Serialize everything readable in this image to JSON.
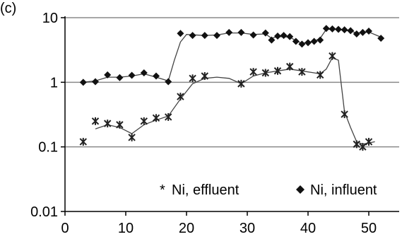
{
  "panel_label": "(c)",
  "chart_data": {
    "type": "scatter",
    "title": "",
    "xlabel": "",
    "ylabel": "",
    "xlim": [
      0,
      55
    ],
    "ylim": [
      0.01,
      10
    ],
    "y_scale": "log",
    "grid": "horizontal major gridlines",
    "legend_position": "bottom-right",
    "x_ticks": [
      0,
      10,
      20,
      30,
      40,
      50
    ],
    "x_tick_labels": [
      "0",
      "10",
      "20",
      "30",
      "40",
      "50"
    ],
    "y_ticks": [
      0.01,
      0.1,
      1,
      10
    ],
    "y_tick_labels": [
      "0.01",
      "0.1",
      "1",
      "10"
    ],
    "series": [
      {
        "name": "Ni, effluent",
        "marker": "asterisk",
        "color": "#222222",
        "points": [
          [
            3,
            0.12
          ],
          [
            5,
            0.25
          ],
          [
            7,
            0.23
          ],
          [
            9,
            0.22
          ],
          [
            11,
            0.14
          ],
          [
            13,
            0.25
          ],
          [
            15,
            0.28
          ],
          [
            17,
            0.29
          ],
          [
            19,
            0.6
          ],
          [
            21,
            1.15
          ],
          [
            23,
            1.25
          ],
          [
            29,
            0.95
          ],
          [
            31,
            1.45
          ],
          [
            33,
            1.4
          ],
          [
            35,
            1.5
          ],
          [
            37,
            1.75
          ],
          [
            39,
            1.45
          ],
          [
            42,
            1.3
          ],
          [
            44,
            2.55
          ],
          [
            46,
            0.32
          ],
          [
            48,
            0.11
          ],
          [
            49,
            0.1
          ],
          [
            50,
            0.12
          ]
        ],
        "trend": [
          [
            5,
            0.19
          ],
          [
            7,
            0.22
          ],
          [
            9,
            0.2
          ],
          [
            11,
            0.16
          ],
          [
            13,
            0.22
          ],
          [
            15,
            0.26
          ],
          [
            17,
            0.3
          ],
          [
            19,
            0.55
          ],
          [
            21,
            0.95
          ],
          [
            23,
            1.15
          ],
          [
            25,
            1.2
          ],
          [
            27,
            1.15
          ],
          [
            29,
            0.95
          ],
          [
            31,
            1.25
          ],
          [
            33,
            1.4
          ],
          [
            35,
            1.5
          ],
          [
            37,
            1.6
          ],
          [
            39,
            1.5
          ],
          [
            41,
            1.4
          ],
          [
            42,
            1.35
          ],
          [
            43,
            1.6
          ],
          [
            44,
            2.4
          ],
          [
            45,
            2.2
          ],
          [
            46,
            0.35
          ],
          [
            47,
            0.2
          ],
          [
            48,
            0.12
          ],
          [
            49,
            0.11
          ],
          [
            51,
            0.12
          ]
        ]
      },
      {
        "name": "Ni, influent",
        "marker": "diamond",
        "color": "#111111",
        "points": [
          [
            3,
            1.0
          ],
          [
            5,
            1.02
          ],
          [
            7,
            1.3
          ],
          [
            9,
            1.18
          ],
          [
            11,
            1.28
          ],
          [
            13,
            1.4
          ],
          [
            15,
            1.25
          ],
          [
            17,
            1.02
          ],
          [
            19,
            5.7
          ],
          [
            21,
            5.3
          ],
          [
            23,
            5.3
          ],
          [
            25,
            5.3
          ],
          [
            27,
            5.9
          ],
          [
            29,
            5.9
          ],
          [
            31,
            5.4
          ],
          [
            33,
            5.8
          ],
          [
            34,
            4.5
          ],
          [
            35,
            5.2
          ],
          [
            36,
            5.3
          ],
          [
            37,
            5.1
          ],
          [
            38,
            4.3
          ],
          [
            39,
            3.9
          ],
          [
            40,
            4.1
          ],
          [
            41,
            4.3
          ],
          [
            42,
            4.5
          ],
          [
            43,
            6.8
          ],
          [
            44,
            6.7
          ],
          [
            45,
            6.6
          ],
          [
            46,
            6.5
          ],
          [
            47,
            6.3
          ],
          [
            48,
            5.6
          ],
          [
            49,
            5.9
          ],
          [
            50,
            6.2
          ],
          [
            52,
            4.8
          ]
        ],
        "trend": [
          [
            3,
            1.0
          ],
          [
            5,
            1.05
          ],
          [
            7,
            1.2
          ],
          [
            9,
            1.2
          ],
          [
            11,
            1.25
          ],
          [
            13,
            1.35
          ],
          [
            15,
            1.2
          ],
          [
            17,
            1.05
          ],
          [
            18,
            2.2
          ],
          [
            19,
            4.2
          ],
          [
            20,
            5.5
          ],
          [
            23,
            5.3
          ],
          [
            25,
            5.4
          ],
          [
            27,
            5.8
          ],
          [
            29,
            5.8
          ],
          [
            31,
            5.5
          ],
          [
            33,
            5.6
          ],
          [
            34,
            4.8
          ],
          [
            35,
            5.1
          ],
          [
            37,
            5.0
          ],
          [
            38,
            4.4
          ],
          [
            39,
            4.0
          ],
          [
            41,
            4.3
          ],
          [
            42,
            4.8
          ],
          [
            43,
            6.6
          ],
          [
            45,
            6.6
          ],
          [
            47,
            6.2
          ],
          [
            48,
            5.8
          ],
          [
            50,
            6.0
          ],
          [
            52,
            5.0
          ]
        ]
      }
    ]
  }
}
